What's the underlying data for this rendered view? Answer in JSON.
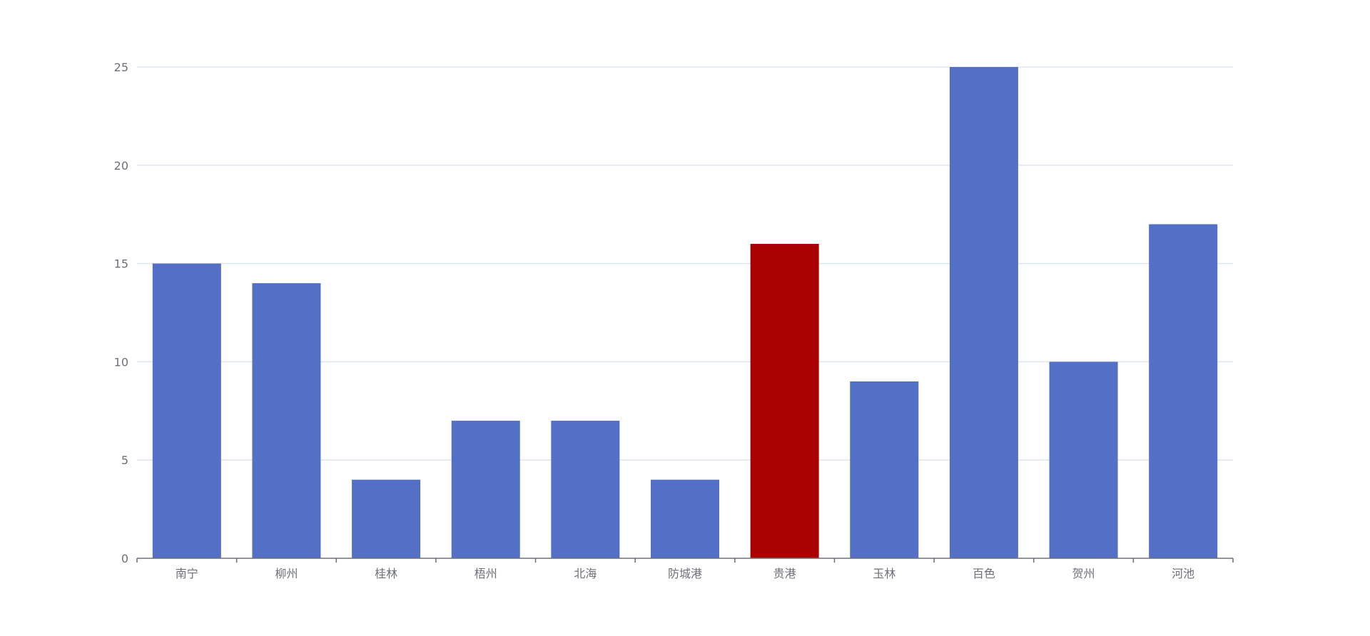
{
  "chart_data": {
    "type": "bar",
    "categories": [
      "南宁",
      "柳州",
      "桂林",
      "梧州",
      "北海",
      "防城港",
      "贵港",
      "玉林",
      "百色",
      "贺州",
      "河池"
    ],
    "values": [
      15,
      14,
      4,
      7,
      7,
      4,
      16,
      9,
      25,
      10,
      17
    ],
    "ylim": [
      0,
      25
    ],
    "yticks": [
      "0",
      "5",
      "10",
      "15",
      "20",
      "25"
    ],
    "grid": true,
    "colors": {
      "default": "#5470c6",
      "highlight": "#a90000"
    },
    "highlight_category": "贵港"
  }
}
